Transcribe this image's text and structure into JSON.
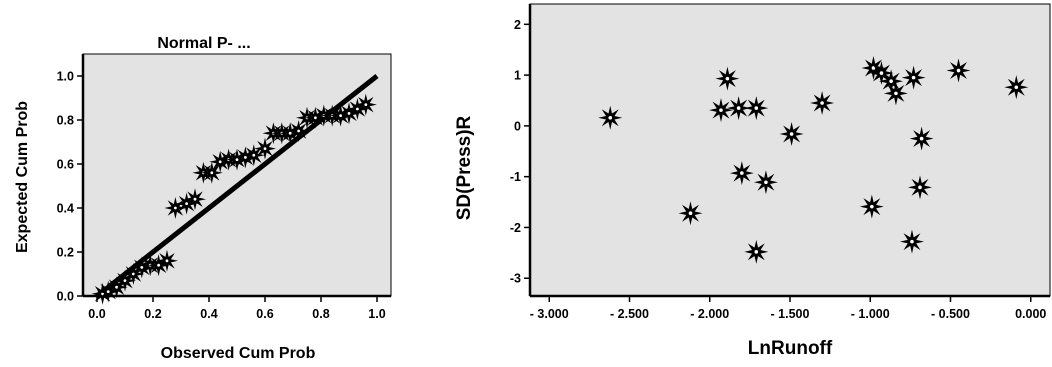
{
  "chart_data": [
    {
      "type": "scatter",
      "title": "Normal P- ...",
      "xlabel": "Observed Cum Prob",
      "ylabel": "Expected Cum Prob",
      "xlim": [
        -0.05,
        1.05
      ],
      "ylim": [
        0.0,
        1.1
      ],
      "xticks": [
        "0.0",
        "0.2",
        "0.4",
        "0.6",
        "0.8",
        "1.0"
      ],
      "yticks": [
        "0.0",
        "0.2",
        "0.4",
        "0.6",
        "0.8",
        "1.0"
      ],
      "reference_line": [
        [
          0.0,
          0.0
        ],
        [
          1.0,
          1.0
        ]
      ],
      "grid": false,
      "background": "#e3e3e3",
      "points": [
        {
          "x": 0.02,
          "y": 0.01
        },
        {
          "x": 0.04,
          "y": 0.02
        },
        {
          "x": 0.07,
          "y": 0.04
        },
        {
          "x": 0.1,
          "y": 0.07
        },
        {
          "x": 0.13,
          "y": 0.1
        },
        {
          "x": 0.16,
          "y": 0.13
        },
        {
          "x": 0.19,
          "y": 0.14
        },
        {
          "x": 0.22,
          "y": 0.14
        },
        {
          "x": 0.25,
          "y": 0.16
        },
        {
          "x": 0.28,
          "y": 0.4
        },
        {
          "x": 0.32,
          "y": 0.42
        },
        {
          "x": 0.35,
          "y": 0.44
        },
        {
          "x": 0.38,
          "y": 0.56
        },
        {
          "x": 0.41,
          "y": 0.56
        },
        {
          "x": 0.44,
          "y": 0.61
        },
        {
          "x": 0.47,
          "y": 0.62
        },
        {
          "x": 0.5,
          "y": 0.62
        },
        {
          "x": 0.53,
          "y": 0.63
        },
        {
          "x": 0.56,
          "y": 0.64
        },
        {
          "x": 0.6,
          "y": 0.67
        },
        {
          "x": 0.63,
          "y": 0.74
        },
        {
          "x": 0.66,
          "y": 0.74
        },
        {
          "x": 0.69,
          "y": 0.74
        },
        {
          "x": 0.72,
          "y": 0.75
        },
        {
          "x": 0.75,
          "y": 0.81
        },
        {
          "x": 0.78,
          "y": 0.81
        },
        {
          "x": 0.81,
          "y": 0.82
        },
        {
          "x": 0.84,
          "y": 0.82
        },
        {
          "x": 0.87,
          "y": 0.82
        },
        {
          "x": 0.9,
          "y": 0.83
        },
        {
          "x": 0.93,
          "y": 0.85
        },
        {
          "x": 0.96,
          "y": 0.87
        }
      ]
    },
    {
      "type": "scatter",
      "title": "",
      "xlabel": "LnRunoff",
      "ylabel": "SD(Press)R",
      "xlim": [
        -3.12,
        0.12
      ],
      "ylim": [
        -3.35,
        2.4
      ],
      "xticks": [
        "- 3.000",
        "- 2.500",
        "- 2.000",
        "- 1.500",
        "- 1.000",
        "- 0.500",
        "0.000"
      ],
      "yticks": [
        "-3",
        "-2",
        "-1",
        "0",
        "1",
        "2"
      ],
      "grid": false,
      "background": "#e3e3e3",
      "points": [
        {
          "x": -2.62,
          "y": 0.16
        },
        {
          "x": -2.12,
          "y": -1.72
        },
        {
          "x": -1.93,
          "y": 0.31
        },
        {
          "x": -1.89,
          "y": 0.93
        },
        {
          "x": -1.82,
          "y": 0.35
        },
        {
          "x": -1.8,
          "y": -0.93
        },
        {
          "x": -1.71,
          "y": 0.35
        },
        {
          "x": -1.71,
          "y": -2.48
        },
        {
          "x": -1.65,
          "y": -1.11
        },
        {
          "x": -1.49,
          "y": -0.16
        },
        {
          "x": -1.3,
          "y": 0.45
        },
        {
          "x": -0.99,
          "y": -1.59
        },
        {
          "x": -0.98,
          "y": 1.14
        },
        {
          "x": -0.93,
          "y": 1.04
        },
        {
          "x": -0.87,
          "y": 0.88
        },
        {
          "x": -0.84,
          "y": 0.64
        },
        {
          "x": -0.74,
          "y": -2.28
        },
        {
          "x": -0.73,
          "y": 0.95
        },
        {
          "x": -0.69,
          "y": -1.21
        },
        {
          "x": -0.68,
          "y": -0.25
        },
        {
          "x": -0.45,
          "y": 1.09
        },
        {
          "x": -0.09,
          "y": 0.76
        }
      ]
    }
  ]
}
